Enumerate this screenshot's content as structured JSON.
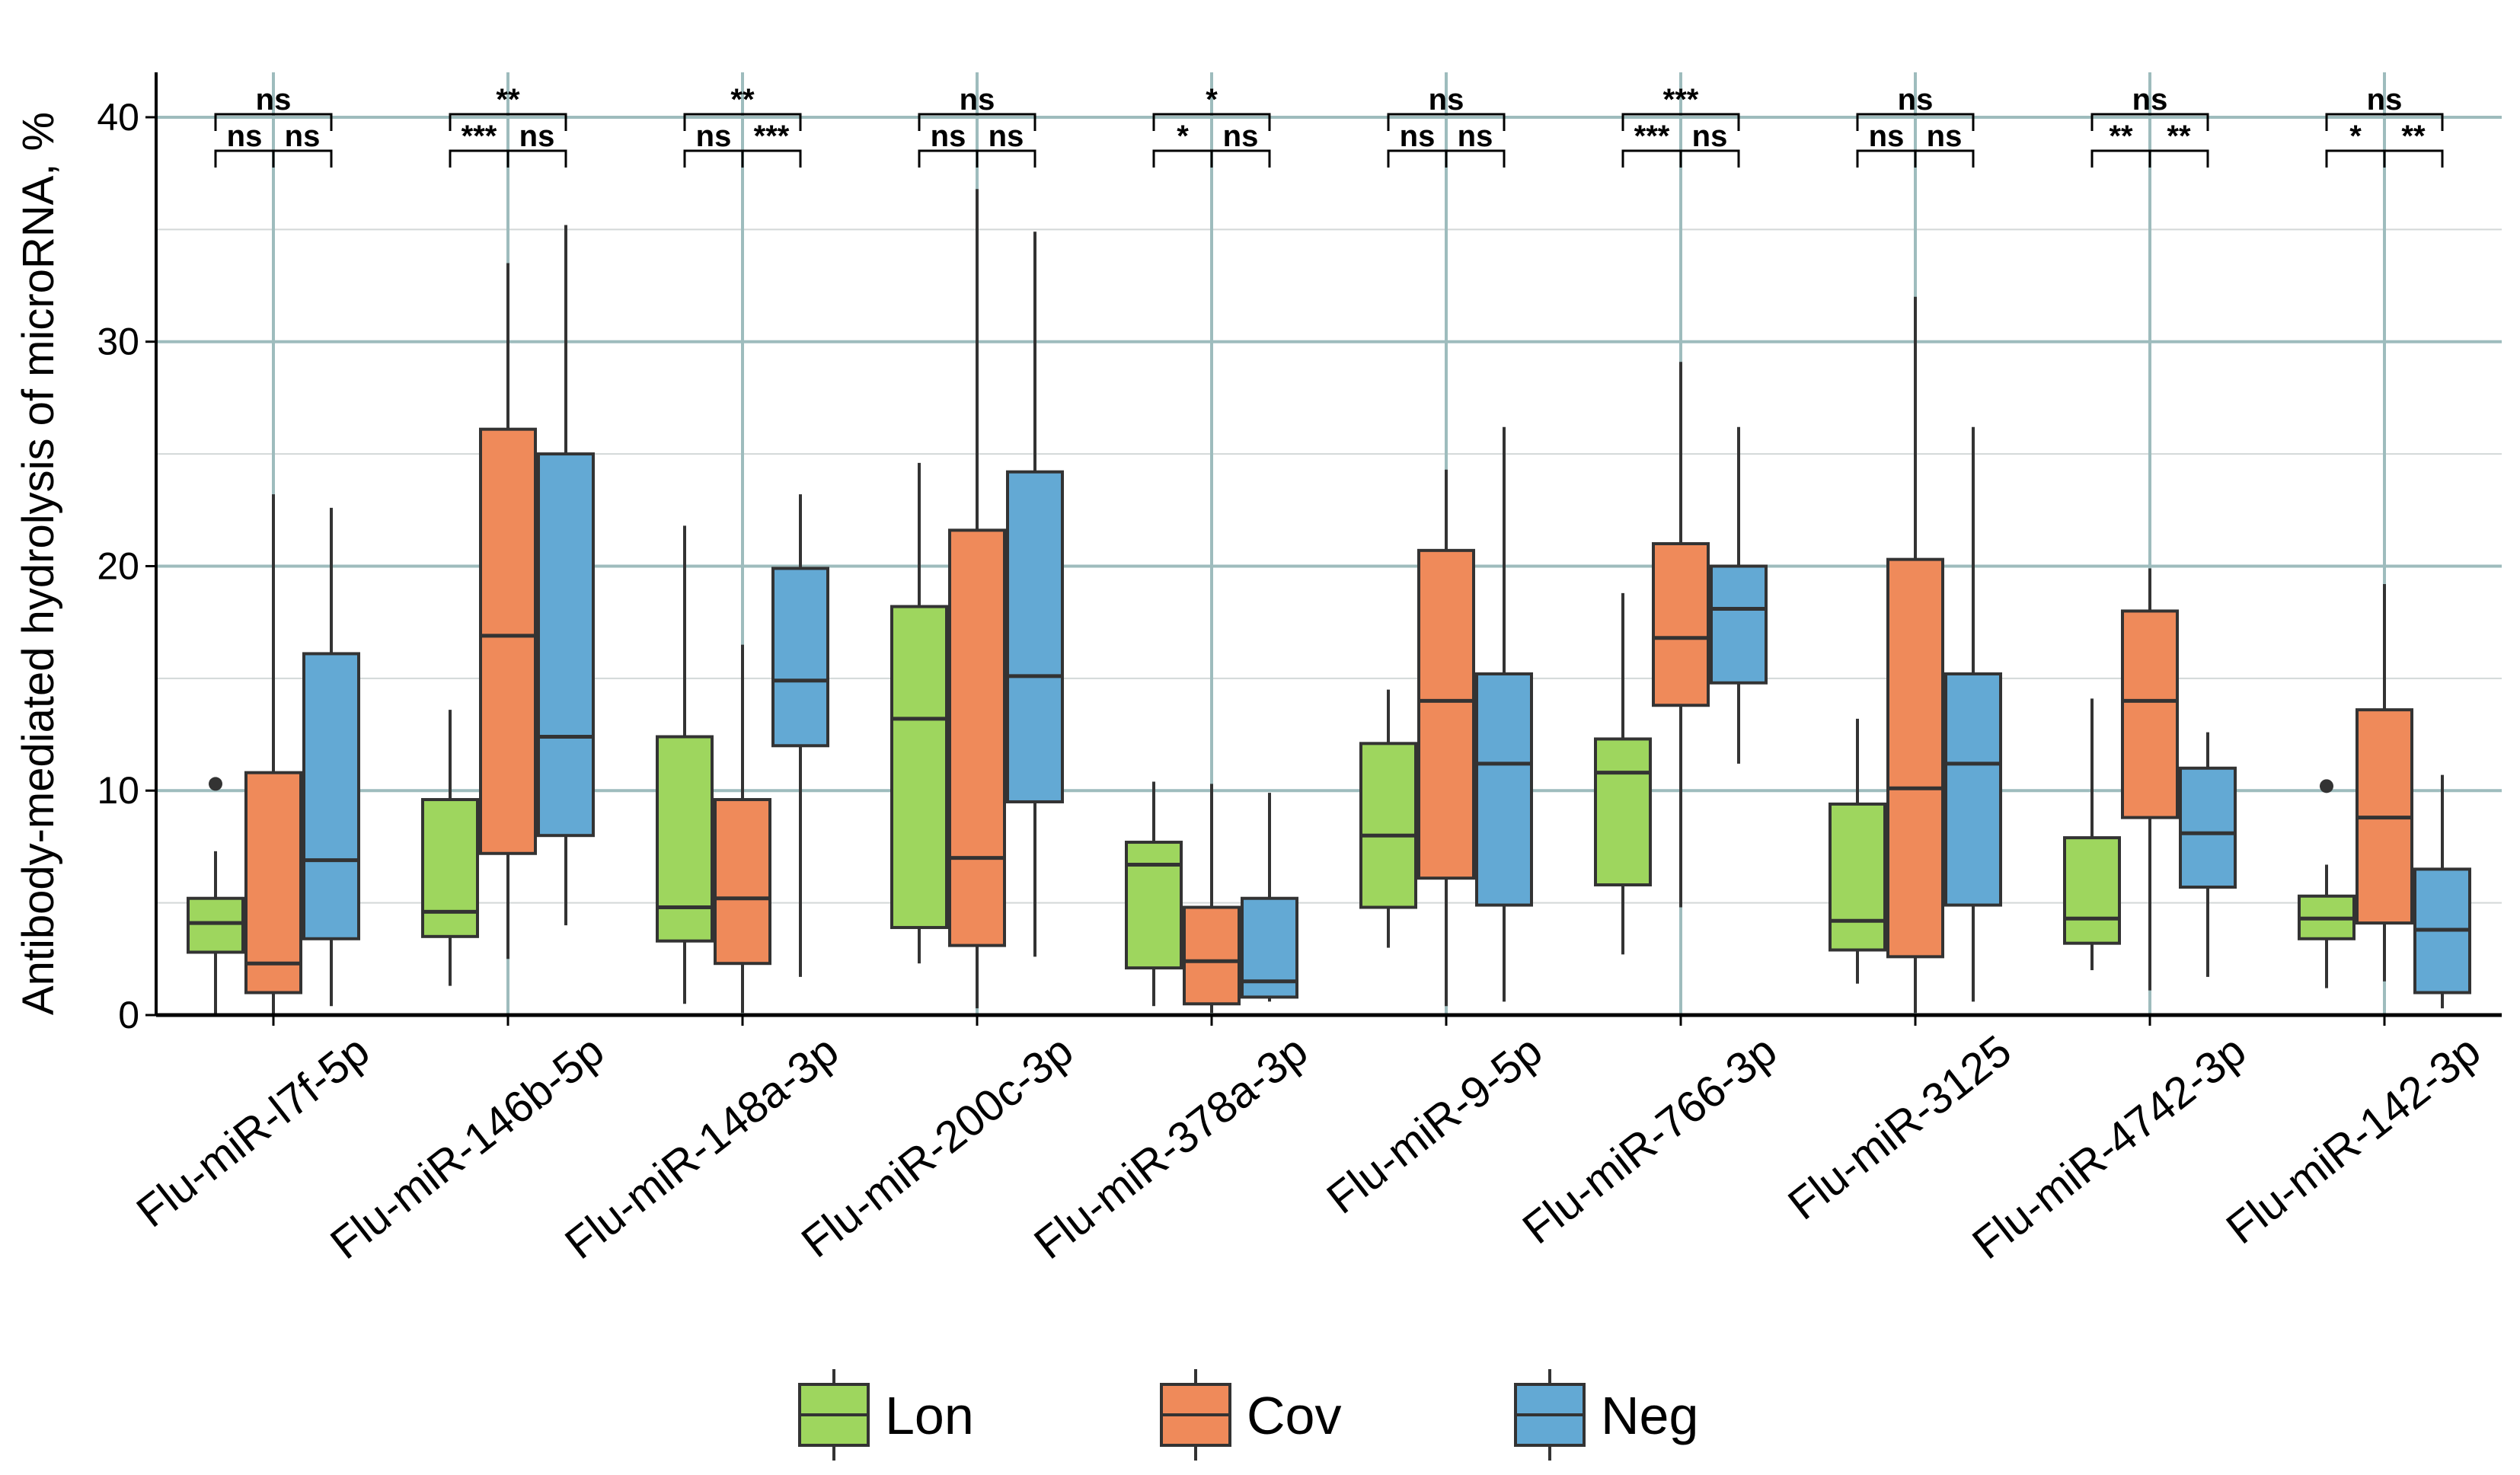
{
  "chart_data": {
    "type": "box",
    "title": "",
    "xlabel": "",
    "ylabel": "Antibody-mediated hydrolysis of microRNA, %",
    "ylim": [
      0,
      42
    ],
    "yticks": [
      0,
      10,
      20,
      30,
      40
    ],
    "grid": true,
    "legend_position": "bottom",
    "categories": [
      "Flu-miR-l7f-5p",
      "Flu-miR-146b-5p",
      "Flu-miR-148a-3p",
      "Flu-miR-200c-3p",
      "Flu-miR-378a-3p",
      "Flu-miR-9-5p",
      "Flu-miR-766-3p",
      "Flu-miR-3125",
      "Flu-miR-4742-3p",
      "Flu-miR-142-3p"
    ],
    "series": [
      {
        "name": "Lon",
        "color": "#9ed65e",
        "boxes": [
          {
            "min": 0,
            "q1": 2.8,
            "median": 4.1,
            "q3": 5.2,
            "max": 7.3,
            "outliers": [
              10.3
            ]
          },
          {
            "min": 1.3,
            "q1": 3.5,
            "median": 4.6,
            "q3": 9.6,
            "max": 13.6,
            "outliers": []
          },
          {
            "min": 0.5,
            "q1": 3.3,
            "median": 4.8,
            "q3": 12.4,
            "max": 21.8,
            "outliers": []
          },
          {
            "min": 2.3,
            "q1": 3.9,
            "median": 13.2,
            "q3": 18.2,
            "max": 24.6,
            "outliers": []
          },
          {
            "min": 0.4,
            "q1": 2.1,
            "median": 6.7,
            "q3": 7.7,
            "max": 10.4,
            "outliers": []
          },
          {
            "min": 3.0,
            "q1": 4.8,
            "median": 8.0,
            "q3": 12.1,
            "max": 14.5,
            "outliers": []
          },
          {
            "min": 2.7,
            "q1": 5.8,
            "median": 10.8,
            "q3": 12.3,
            "max": 18.8,
            "outliers": []
          },
          {
            "min": 1.4,
            "q1": 2.9,
            "median": 4.2,
            "q3": 9.4,
            "max": 13.2,
            "outliers": []
          },
          {
            "min": 2.0,
            "q1": 3.2,
            "median": 4.3,
            "q3": 7.9,
            "max": 14.1,
            "outliers": []
          },
          {
            "min": 1.2,
            "q1": 3.4,
            "median": 4.3,
            "q3": 5.3,
            "max": 6.7,
            "outliers": [
              10.2
            ]
          }
        ]
      },
      {
        "name": "Cov",
        "color": "#ef8a5a",
        "boxes": [
          {
            "min": 0,
            "q1": 1.0,
            "median": 2.3,
            "q3": 10.8,
            "max": 23.2,
            "outliers": []
          },
          {
            "min": 2.5,
            "q1": 7.2,
            "median": 16.9,
            "q3": 26.1,
            "max": 33.5,
            "outliers": []
          },
          {
            "min": 0.1,
            "q1": 2.3,
            "median": 5.2,
            "q3": 9.6,
            "max": 16.5,
            "outliers": []
          },
          {
            "min": 0.3,
            "q1": 3.1,
            "median": 7.0,
            "q3": 21.6,
            "max": 36.8,
            "outliers": []
          },
          {
            "min": 0.1,
            "q1": 0.5,
            "median": 2.4,
            "q3": 4.8,
            "max": 10.3,
            "outliers": []
          },
          {
            "min": 0.4,
            "q1": 6.1,
            "median": 14.0,
            "q3": 20.7,
            "max": 24.3,
            "outliers": []
          },
          {
            "min": 4.8,
            "q1": 13.8,
            "median": 16.8,
            "q3": 21.0,
            "max": 29.1,
            "outliers": []
          },
          {
            "min": 0.1,
            "q1": 2.6,
            "median": 10.1,
            "q3": 20.3,
            "max": 32.0,
            "outliers": []
          },
          {
            "min": 1.1,
            "q1": 8.8,
            "median": 14.0,
            "q3": 18.0,
            "max": 19.9,
            "outliers": []
          },
          {
            "min": 1.5,
            "q1": 4.1,
            "median": 8.8,
            "q3": 13.6,
            "max": 19.2,
            "outliers": []
          }
        ]
      },
      {
        "name": "Neg",
        "color": "#63a9d4",
        "boxes": [
          {
            "min": 0.4,
            "q1": 3.4,
            "median": 6.9,
            "q3": 16.1,
            "max": 22.6,
            "outliers": []
          },
          {
            "min": 4.0,
            "q1": 8.0,
            "median": 12.4,
            "q3": 25.0,
            "max": 35.2,
            "outliers": []
          },
          {
            "min": 1.7,
            "q1": 12.0,
            "median": 14.9,
            "q3": 19.9,
            "max": 23.2,
            "outliers": []
          },
          {
            "min": 2.6,
            "q1": 9.5,
            "median": 15.1,
            "q3": 24.2,
            "max": 34.9,
            "outliers": []
          },
          {
            "min": 0.6,
            "q1": 0.8,
            "median": 1.5,
            "q3": 5.2,
            "max": 9.9,
            "outliers": []
          },
          {
            "min": 0.6,
            "q1": 4.9,
            "median": 11.2,
            "q3": 15.2,
            "max": 26.2,
            "outliers": []
          },
          {
            "min": 11.2,
            "q1": 14.8,
            "median": 18.1,
            "q3": 20.0,
            "max": 26.2,
            "outliers": []
          },
          {
            "min": 0.6,
            "q1": 4.9,
            "median": 11.2,
            "q3": 15.2,
            "max": 26.2,
            "outliers": []
          },
          {
            "min": 1.7,
            "q1": 5.7,
            "median": 8.1,
            "q3": 11.0,
            "max": 12.6,
            "outliers": []
          },
          {
            "min": 0.3,
            "q1": 1.0,
            "median": 3.8,
            "q3": 6.5,
            "max": 10.7,
            "outliers": []
          }
        ]
      }
    ],
    "significance": [
      {
        "lon_cov": "ns",
        "lon_neg": "ns",
        "cov_neg": "ns"
      },
      {
        "lon_cov": "***",
        "lon_neg": "**",
        "cov_neg": "ns"
      },
      {
        "lon_cov": "ns",
        "lon_neg": "**",
        "cov_neg": "***"
      },
      {
        "lon_cov": "ns",
        "lon_neg": "ns",
        "cov_neg": "ns"
      },
      {
        "lon_cov": "*",
        "lon_neg": "*",
        "cov_neg": "ns"
      },
      {
        "lon_cov": "ns",
        "lon_neg": "ns",
        "cov_neg": "ns"
      },
      {
        "lon_cov": "***",
        "lon_neg": "***",
        "cov_neg": "ns"
      },
      {
        "lon_cov": "ns",
        "lon_neg": "ns",
        "cov_neg": "ns"
      },
      {
        "lon_cov": "**",
        "lon_neg": "ns",
        "cov_neg": "**"
      },
      {
        "lon_cov": "*",
        "lon_neg": "ns",
        "cov_neg": "**"
      }
    ]
  }
}
